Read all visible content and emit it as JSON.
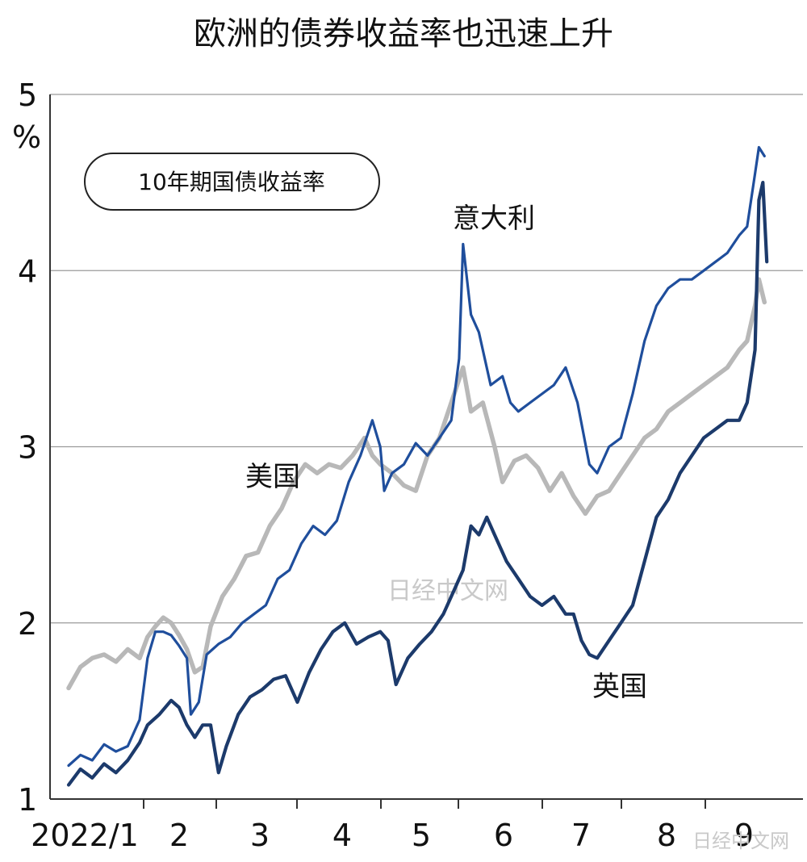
{
  "title": "欧洲的债券收益率也迅速上升",
  "chart_data": {
    "type": "line",
    "title": "欧洲的债券收益率也迅速上升",
    "legend_box": "10年期国债收益率",
    "ylabel": "%",
    "ylim": [
      1,
      5
    ],
    "yticks": [
      "1",
      "2",
      "3",
      "4",
      "5"
    ],
    "x_categories": [
      "2022/1",
      "2",
      "3",
      "4",
      "5",
      "6",
      "7",
      "8",
      "9"
    ],
    "xlim": [
      1.0,
      9.95
    ],
    "grid": "horizontal",
    "legend_placement": "inline labels",
    "series": [
      {
        "name": "意大利",
        "color": "#1f4e9c",
        "points": [
          [
            1.0,
            1.19
          ],
          [
            1.15,
            1.25
          ],
          [
            1.3,
            1.22
          ],
          [
            1.45,
            1.31
          ],
          [
            1.6,
            1.27
          ],
          [
            1.75,
            1.3
          ],
          [
            1.9,
            1.45
          ],
          [
            2.0,
            1.8
          ],
          [
            2.1,
            1.95
          ],
          [
            2.2,
            1.95
          ],
          [
            2.3,
            1.93
          ],
          [
            2.4,
            1.87
          ],
          [
            2.5,
            1.8
          ],
          [
            2.55,
            1.48
          ],
          [
            2.65,
            1.55
          ],
          [
            2.75,
            1.82
          ],
          [
            2.9,
            1.88
          ],
          [
            3.05,
            1.92
          ],
          [
            3.2,
            2.0
          ],
          [
            3.35,
            2.05
          ],
          [
            3.5,
            2.1
          ],
          [
            3.65,
            2.25
          ],
          [
            3.8,
            2.3
          ],
          [
            3.95,
            2.45
          ],
          [
            4.1,
            2.55
          ],
          [
            4.25,
            2.5
          ],
          [
            4.4,
            2.58
          ],
          [
            4.55,
            2.8
          ],
          [
            4.7,
            2.95
          ],
          [
            4.85,
            3.15
          ],
          [
            4.95,
            3.0
          ],
          [
            5.0,
            2.75
          ],
          [
            5.1,
            2.85
          ],
          [
            5.25,
            2.9
          ],
          [
            5.4,
            3.02
          ],
          [
            5.55,
            2.95
          ],
          [
            5.7,
            3.05
          ],
          [
            5.85,
            3.15
          ],
          [
            5.95,
            3.5
          ],
          [
            6.0,
            4.15
          ],
          [
            6.1,
            3.75
          ],
          [
            6.2,
            3.65
          ],
          [
            6.35,
            3.35
          ],
          [
            6.5,
            3.4
          ],
          [
            6.6,
            3.25
          ],
          [
            6.7,
            3.2
          ],
          [
            6.85,
            3.25
          ],
          [
            7.0,
            3.3
          ],
          [
            7.15,
            3.35
          ],
          [
            7.3,
            3.45
          ],
          [
            7.45,
            3.25
          ],
          [
            7.6,
            2.9
          ],
          [
            7.7,
            2.85
          ],
          [
            7.85,
            3.0
          ],
          [
            8.0,
            3.05
          ],
          [
            8.15,
            3.3
          ],
          [
            8.3,
            3.6
          ],
          [
            8.45,
            3.8
          ],
          [
            8.6,
            3.9
          ],
          [
            8.75,
            3.95
          ],
          [
            8.9,
            3.95
          ],
          [
            9.05,
            4.0
          ],
          [
            9.2,
            4.05
          ],
          [
            9.35,
            4.1
          ],
          [
            9.5,
            4.2
          ],
          [
            9.6,
            4.25
          ],
          [
            9.7,
            4.55
          ],
          [
            9.75,
            4.7
          ],
          [
            9.82,
            4.65
          ]
        ]
      },
      {
        "name": "美国",
        "color": "#b8b8b8",
        "points": [
          [
            1.0,
            1.63
          ],
          [
            1.15,
            1.75
          ],
          [
            1.3,
            1.8
          ],
          [
            1.45,
            1.82
          ],
          [
            1.6,
            1.78
          ],
          [
            1.75,
            1.85
          ],
          [
            1.9,
            1.8
          ],
          [
            2.0,
            1.92
          ],
          [
            2.1,
            1.98
          ],
          [
            2.2,
            2.03
          ],
          [
            2.3,
            2.0
          ],
          [
            2.4,
            1.93
          ],
          [
            2.5,
            1.85
          ],
          [
            2.6,
            1.72
          ],
          [
            2.7,
            1.75
          ],
          [
            2.8,
            1.98
          ],
          [
            2.95,
            2.15
          ],
          [
            3.1,
            2.25
          ],
          [
            3.25,
            2.38
          ],
          [
            3.4,
            2.4
          ],
          [
            3.55,
            2.55
          ],
          [
            3.7,
            2.65
          ],
          [
            3.85,
            2.8
          ],
          [
            4.0,
            2.9
          ],
          [
            4.15,
            2.85
          ],
          [
            4.3,
            2.9
          ],
          [
            4.45,
            2.88
          ],
          [
            4.6,
            2.95
          ],
          [
            4.75,
            3.05
          ],
          [
            4.85,
            2.95
          ],
          [
            4.95,
            2.9
          ],
          [
            5.1,
            2.85
          ],
          [
            5.25,
            2.78
          ],
          [
            5.4,
            2.75
          ],
          [
            5.55,
            2.95
          ],
          [
            5.7,
            3.05
          ],
          [
            5.85,
            3.25
          ],
          [
            6.0,
            3.45
          ],
          [
            6.1,
            3.2
          ],
          [
            6.25,
            3.25
          ],
          [
            6.4,
            3.0
          ],
          [
            6.5,
            2.8
          ],
          [
            6.65,
            2.92
          ],
          [
            6.8,
            2.95
          ],
          [
            6.95,
            2.88
          ],
          [
            7.1,
            2.75
          ],
          [
            7.25,
            2.85
          ],
          [
            7.4,
            2.72
          ],
          [
            7.55,
            2.62
          ],
          [
            7.7,
            2.72
          ],
          [
            7.85,
            2.75
          ],
          [
            8.0,
            2.85
          ],
          [
            8.15,
            2.95
          ],
          [
            8.3,
            3.05
          ],
          [
            8.45,
            3.1
          ],
          [
            8.6,
            3.2
          ],
          [
            8.75,
            3.25
          ],
          [
            8.9,
            3.3
          ],
          [
            9.05,
            3.35
          ],
          [
            9.2,
            3.4
          ],
          [
            9.35,
            3.45
          ],
          [
            9.5,
            3.55
          ],
          [
            9.6,
            3.6
          ],
          [
            9.7,
            3.8
          ],
          [
            9.75,
            3.95
          ],
          [
            9.82,
            3.82
          ]
        ]
      },
      {
        "name": "英国",
        "color": "#1c3a6b",
        "points": [
          [
            1.0,
            1.08
          ],
          [
            1.15,
            1.17
          ],
          [
            1.3,
            1.12
          ],
          [
            1.45,
            1.2
          ],
          [
            1.6,
            1.15
          ],
          [
            1.75,
            1.22
          ],
          [
            1.9,
            1.32
          ],
          [
            2.0,
            1.42
          ],
          [
            2.15,
            1.48
          ],
          [
            2.3,
            1.56
          ],
          [
            2.4,
            1.52
          ],
          [
            2.5,
            1.42
          ],
          [
            2.6,
            1.35
          ],
          [
            2.7,
            1.42
          ],
          [
            2.8,
            1.42
          ],
          [
            2.9,
            1.15
          ],
          [
            3.0,
            1.3
          ],
          [
            3.15,
            1.48
          ],
          [
            3.3,
            1.58
          ],
          [
            3.45,
            1.62
          ],
          [
            3.6,
            1.68
          ],
          [
            3.75,
            1.7
          ],
          [
            3.9,
            1.55
          ],
          [
            4.05,
            1.72
          ],
          [
            4.2,
            1.85
          ],
          [
            4.35,
            1.95
          ],
          [
            4.5,
            2.0
          ],
          [
            4.65,
            1.88
          ],
          [
            4.8,
            1.92
          ],
          [
            4.95,
            1.95
          ],
          [
            5.05,
            1.9
          ],
          [
            5.15,
            1.65
          ],
          [
            5.3,
            1.8
          ],
          [
            5.45,
            1.88
          ],
          [
            5.6,
            1.95
          ],
          [
            5.75,
            2.05
          ],
          [
            5.9,
            2.2
          ],
          [
            6.0,
            2.3
          ],
          [
            6.1,
            2.55
          ],
          [
            6.2,
            2.5
          ],
          [
            6.3,
            2.6
          ],
          [
            6.4,
            2.5
          ],
          [
            6.55,
            2.35
          ],
          [
            6.7,
            2.25
          ],
          [
            6.85,
            2.15
          ],
          [
            7.0,
            2.1
          ],
          [
            7.15,
            2.15
          ],
          [
            7.3,
            2.05
          ],
          [
            7.4,
            2.05
          ],
          [
            7.5,
            1.9
          ],
          [
            7.6,
            1.82
          ],
          [
            7.7,
            1.8
          ],
          [
            7.85,
            1.9
          ],
          [
            8.0,
            2.0
          ],
          [
            8.15,
            2.1
          ],
          [
            8.3,
            2.35
          ],
          [
            8.45,
            2.6
          ],
          [
            8.6,
            2.7
          ],
          [
            8.75,
            2.85
          ],
          [
            8.9,
            2.95
          ],
          [
            9.05,
            3.05
          ],
          [
            9.2,
            3.1
          ],
          [
            9.35,
            3.15
          ],
          [
            9.5,
            3.15
          ],
          [
            9.6,
            3.25
          ],
          [
            9.7,
            3.55
          ],
          [
            9.75,
            4.4
          ],
          [
            9.8,
            4.5
          ],
          [
            9.85,
            4.05
          ]
        ]
      }
    ]
  },
  "watermarks": [
    "日经中文网",
    "日经中文网"
  ]
}
